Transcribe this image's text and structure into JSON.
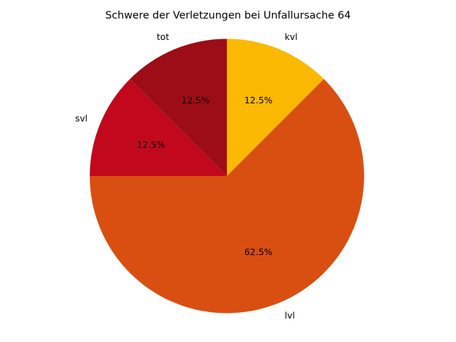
{
  "chart_data": {
    "type": "pie",
    "title": "Schwere der Verletzungen bei Unfallursache 64",
    "start_angle_deg": 90,
    "direction": "clockwise",
    "slices": [
      {
        "label": "kvl",
        "value": 12.5,
        "pct_label": "12.5%",
        "color": "#fbb903"
      },
      {
        "label": "lvl",
        "value": 62.5,
        "pct_label": "62.5%",
        "color": "#d94f11"
      },
      {
        "label": "svl",
        "value": 12.5,
        "pct_label": "12.5%",
        "color": "#c2081d"
      },
      {
        "label": "tot",
        "value": 12.5,
        "pct_label": "12.5%",
        "color": "#9c0d17"
      }
    ]
  }
}
